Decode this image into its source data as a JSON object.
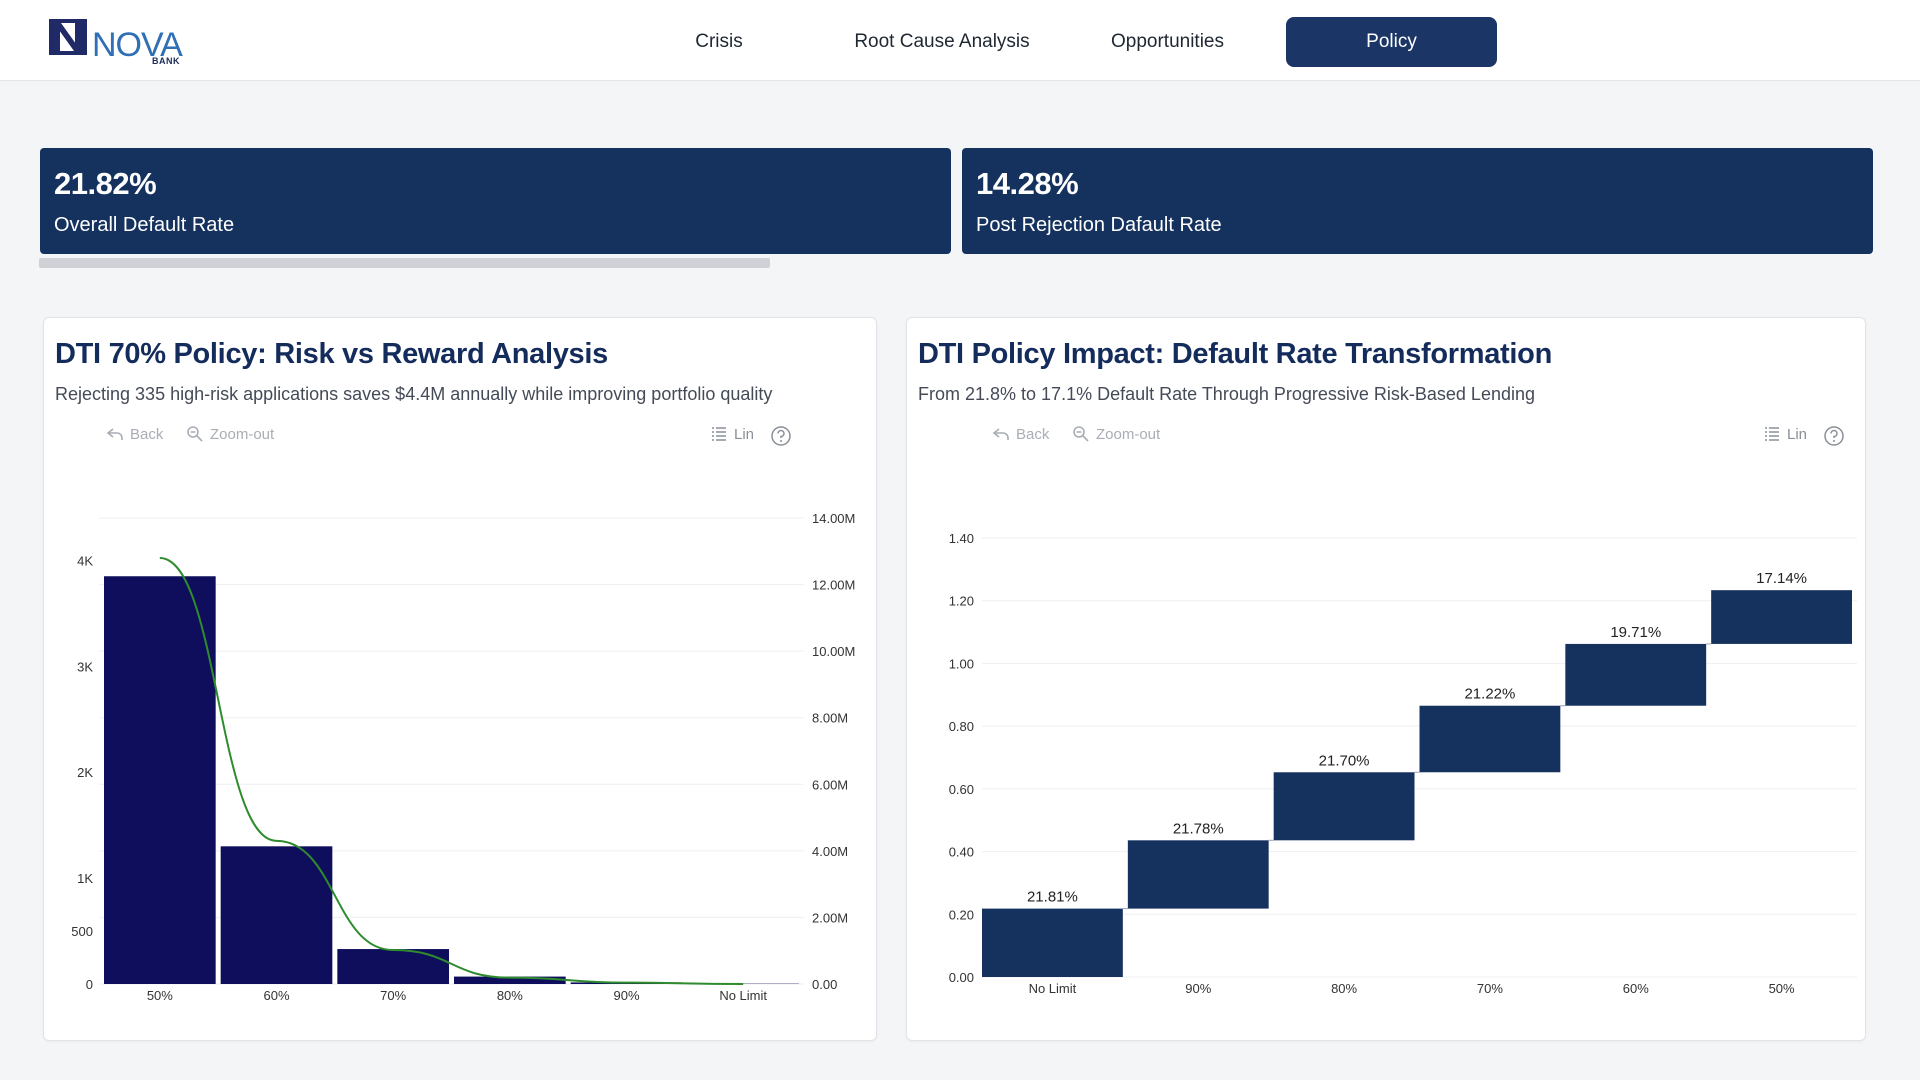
{
  "brand": {
    "name": "NOVA",
    "sub": "BANK"
  },
  "nav": {
    "tabs": [
      {
        "label": "Crisis",
        "active": false
      },
      {
        "label": "Root Cause Analysis",
        "active": false
      },
      {
        "label": "Opportunities",
        "active": false
      },
      {
        "label": "Policy",
        "active": true
      }
    ]
  },
  "kpis": [
    {
      "value": "21.82%",
      "label": "Overall Default Rate"
    },
    {
      "value": "14.28%",
      "label": "Post Rejection Dafault Rate"
    }
  ],
  "toolbar": {
    "back": "Back",
    "zoom_out": "Zoom-out",
    "legend": "Lin"
  },
  "colors": {
    "navy": "#15325f",
    "bar_dark": "#0f0e5c",
    "line": "#2e8b2e",
    "accent": "#1a3566"
  },
  "charts": {
    "risk_reward": {
      "title": "DTI 70% Policy: Risk vs Reward Analysis",
      "subtitle": "Rejecting 335 high-risk applications saves $4.4M annually while improving portfolio quality"
    },
    "impact": {
      "title": "DTI Policy Impact: Default Rate Transformation",
      "subtitle": "From 21.8% to 17.1% Default Rate Through Progressive Risk-Based Lending"
    }
  },
  "chart_data": [
    {
      "type": "bar",
      "title": "DTI 70% Policy: Risk vs Reward Analysis",
      "categories": [
        "50%",
        "60%",
        "70%",
        "80%",
        "90%",
        "No Limit"
      ],
      "series": [
        {
          "type": "bar",
          "axis": "left",
          "values": [
            3850,
            1300,
            330,
            70,
            15,
            3
          ]
        },
        {
          "type": "line",
          "axis": "right",
          "values": [
            12800000,
            4300000,
            1020000,
            190000,
            40000,
            0
          ]
        }
      ],
      "y_left": {
        "ticks": [
          0,
          500,
          1000,
          2000,
          3000,
          4000
        ],
        "tick_labels": [
          "0",
          "500",
          "1K",
          "2K",
          "3K",
          "4K"
        ],
        "max": 4400
      },
      "y_right": {
        "ticks": [
          0,
          2000000,
          4000000,
          6000000,
          8000000,
          10000000,
          12000000,
          14000000
        ],
        "tick_labels": [
          "0.00",
          "2.00M",
          "4.00M",
          "6.00M",
          "8.00M",
          "10.00M",
          "12.00M",
          "14.00M"
        ],
        "max": 14000000
      },
      "grid": true
    },
    {
      "type": "bar",
      "subtype": "waterfall",
      "title": "DTI Policy Impact: Default Rate Transformation",
      "categories": [
        "No Limit",
        "90%",
        "80%",
        "70%",
        "60%",
        "50%"
      ],
      "ranges": [
        [
          0,
          0.2181
        ],
        [
          0.2181,
          0.4359
        ],
        [
          0.4359,
          0.6529
        ],
        [
          0.6529,
          0.8651
        ],
        [
          0.8651,
          1.0622
        ],
        [
          1.0622,
          1.2336
        ]
      ],
      "data_labels": [
        "21.81%",
        "21.78%",
        "21.70%",
        "21.22%",
        "19.71%",
        "17.14%"
      ],
      "ylim": [
        0,
        1.4
      ],
      "y_ticks": [
        "0.00",
        "0.20",
        "0.40",
        "0.60",
        "0.80",
        "1.00",
        "1.20",
        "1.40"
      ],
      "grid": true
    }
  ]
}
